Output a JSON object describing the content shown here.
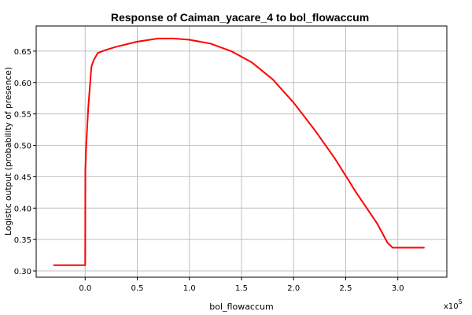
{
  "chart_data": {
    "type": "line",
    "title": "Response of Caiman_yacare_4 to bol_flowaccum",
    "xlabel": "bol_flowaccum",
    "ylabel": "Logistic output (probability of presence)",
    "x_multiplier_base": "x10",
    "x_multiplier_exp": "5",
    "xlim": [
      -0.47,
      3.47
    ],
    "ylim": [
      0.29,
      0.69
    ],
    "x_ticks": [
      0.0,
      0.5,
      1.0,
      1.5,
      2.0,
      2.5,
      3.0
    ],
    "x_tick_labels": [
      "0.0",
      "0.5",
      "1.0",
      "1.5",
      "2.0",
      "2.5",
      "3.0"
    ],
    "y_ticks": [
      0.3,
      0.35,
      0.4,
      0.45,
      0.5,
      0.55,
      0.6,
      0.65
    ],
    "y_tick_labels": [
      "0.30",
      "0.35",
      "0.40",
      "0.45",
      "0.50",
      "0.55",
      "0.60",
      "0.65"
    ],
    "grid": true,
    "series": [
      {
        "color": "#ff0000",
        "x": [
          -0.3,
          0.0,
          0.002,
          0.01,
          0.03,
          0.06,
          0.08,
          0.12,
          0.2,
          0.3,
          0.5,
          0.7,
          0.85,
          1.0,
          1.2,
          1.4,
          1.6,
          1.8,
          2.0,
          2.2,
          2.4,
          2.6,
          2.8,
          2.9,
          2.95,
          3.0,
          3.1,
          3.2,
          3.25
        ],
        "y": [
          0.309,
          0.309,
          0.46,
          0.5,
          0.56,
          0.625,
          0.635,
          0.647,
          0.652,
          0.657,
          0.665,
          0.67,
          0.67,
          0.668,
          0.662,
          0.65,
          0.632,
          0.605,
          0.568,
          0.525,
          0.478,
          0.425,
          0.376,
          0.345,
          0.337,
          0.337,
          0.337,
          0.337,
          0.337
        ]
      }
    ]
  }
}
